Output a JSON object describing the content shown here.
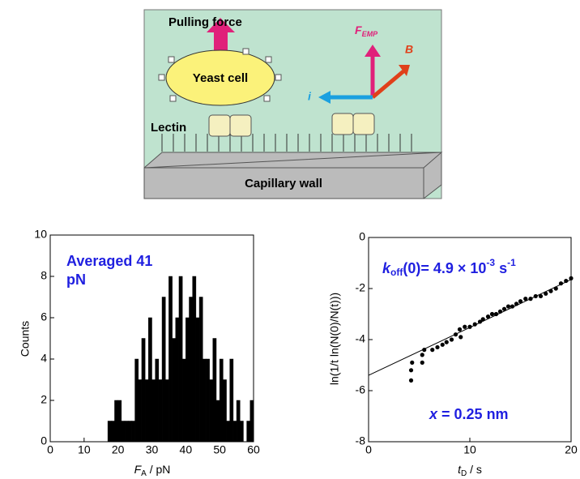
{
  "diagram": {
    "pulling": "Pulling force",
    "cell": "Yeast cell",
    "lectin": "Lectin",
    "wall": "Capillary wall",
    "force": "F",
    "force_sub": "EMP",
    "field": "B",
    "current": "i"
  },
  "chart_data": [
    {
      "type": "histogram",
      "ylabel": "Counts",
      "xlabel": [
        "F",
        "A",
        " / pN"
      ],
      "annotation": [
        "Averaged  41",
        "pN"
      ],
      "color": "#000000",
      "bins": [
        17,
        18,
        19,
        20,
        21,
        22,
        23,
        24,
        25,
        26,
        27,
        28,
        29,
        30,
        31,
        32,
        33,
        34,
        35,
        36,
        37,
        38,
        39,
        40,
        41,
        42,
        43,
        44,
        45,
        46,
        47,
        48,
        49,
        50,
        51,
        52,
        53,
        54,
        55,
        56,
        57,
        58,
        59,
        60
      ],
      "values": [
        1,
        1,
        2,
        2,
        1,
        1,
        1,
        1,
        4,
        3,
        5,
        3,
        6,
        3,
        4,
        3,
        7,
        3,
        8,
        5,
        6,
        8,
        4,
        6,
        7,
        8,
        6,
        7,
        4,
        4,
        3,
        5,
        2,
        4,
        3,
        1,
        4,
        1,
        2,
        1,
        0,
        1,
        2
      ],
      "xlim": [
        0,
        60
      ],
      "xticks": [
        0,
        10,
        20,
        30,
        40,
        50,
        60
      ],
      "ylim": [
        0,
        10
      ],
      "yticks": [
        0,
        2,
        4,
        6,
        8,
        10
      ]
    },
    {
      "type": "scatter",
      "ylabel": "ln(1/t ln(N(0)/N(t)))",
      "xlabel": [
        "t",
        "D",
        " / s"
      ],
      "annotation": [
        "k",
        "off",
        "(0)= 4.9 × 10",
        "-3",
        " s",
        "-1"
      ],
      "annotation2": [
        "x",
        " = 0.25 nm"
      ],
      "color": "#000000",
      "x": [
        4.2,
        4.2,
        4.3,
        5.3,
        5.3,
        5.5,
        6.3,
        6.8,
        7.3,
        7.7,
        8.2,
        8.6,
        9.0,
        9.1,
        9.5,
        10.0,
        10.5,
        11.0,
        11.3,
        11.8,
        12.2,
        12.6,
        13.0,
        13.4,
        13.8,
        14.2,
        14.6,
        15.0,
        15.5,
        16.0,
        16.5,
        17.0,
        17.5,
        18.0,
        18.5,
        19.0,
        19.5,
        20.0
      ],
      "y": [
        -5.6,
        -5.2,
        -4.9,
        -4.9,
        -4.6,
        -4.4,
        -4.4,
        -4.3,
        -4.2,
        -4.1,
        -4.0,
        -3.8,
        -3.6,
        -3.9,
        -3.5,
        -3.5,
        -3.4,
        -3.3,
        -3.2,
        -3.1,
        -3.0,
        -3.0,
        -2.9,
        -2.8,
        -2.7,
        -2.7,
        -2.6,
        -2.5,
        -2.4,
        -2.4,
        -2.3,
        -2.3,
        -2.2,
        -2.1,
        -2.0,
        -1.8,
        -1.7,
        -1.6
      ],
      "fit_line": {
        "x": [
          0,
          20
        ],
        "y": [
          -5.4,
          -1.65
        ]
      },
      "xlim": [
        0,
        20
      ],
      "xticks": [
        0,
        10,
        20
      ],
      "ylim": [
        -8,
        0
      ],
      "yticks": [
        0,
        -2,
        -4,
        -6,
        -8
      ]
    }
  ]
}
